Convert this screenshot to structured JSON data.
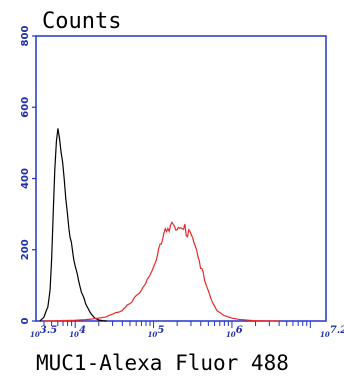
{
  "chart_data": {
    "type": "histogram-overlay",
    "ylabel": "Counts",
    "xlabel": "MUC1-Alexa Fluor 488",
    "ylim": [
      0,
      800
    ],
    "xlim_log10": [
      3.5,
      7.2
    ],
    "y_ticks": [
      "0",
      "200",
      "400",
      "600",
      "800"
    ],
    "x_ticks": [
      {
        "label": "10^3.5",
        "log": 3.5
      },
      {
        "label": "10^4",
        "log": 4
      },
      {
        "label": "10^5",
        "log": 5
      },
      {
        "label": "10^6",
        "log": 6
      },
      {
        "label": "10^7.2",
        "log": 7.2
      }
    ],
    "series": [
      {
        "color": "#000000",
        "x_log10": [
          3.55,
          3.6,
          3.65,
          3.68,
          3.7,
          3.72,
          3.74,
          3.76,
          3.78,
          3.8,
          3.82,
          3.84,
          3.86,
          3.88,
          3.9,
          3.92,
          3.95,
          3.98,
          4.0,
          4.03,
          4.06,
          4.1,
          4.15,
          4.2,
          4.25,
          4.3,
          4.35,
          4.4
        ],
        "y": [
          0,
          10,
          40,
          90,
          180,
          300,
          420,
          500,
          525,
          515,
          490,
          450,
          400,
          330,
          290,
          250,
          210,
          180,
          160,
          130,
          100,
          70,
          40,
          20,
          8,
          3,
          1,
          0
        ]
      },
      {
        "color": "#e8282a",
        "x_log10": [
          3.6,
          4.0,
          4.2,
          4.4,
          4.6,
          4.7,
          4.8,
          4.9,
          5.0,
          5.05,
          5.1,
          5.15,
          5.2,
          5.25,
          5.3,
          5.35,
          5.4,
          5.45,
          5.5,
          5.55,
          5.6,
          5.65,
          5.7,
          5.75,
          5.8,
          5.9,
          6.0,
          6.1,
          6.3,
          6.6
        ],
        "y": [
          0,
          2,
          5,
          12,
          30,
          50,
          75,
          110,
          150,
          185,
          215,
          245,
          262,
          272,
          268,
          265,
          258,
          245,
          222,
          190,
          155,
          120,
          85,
          55,
          32,
          15,
          8,
          4,
          1,
          0
        ]
      }
    ],
    "grid": false
  }
}
